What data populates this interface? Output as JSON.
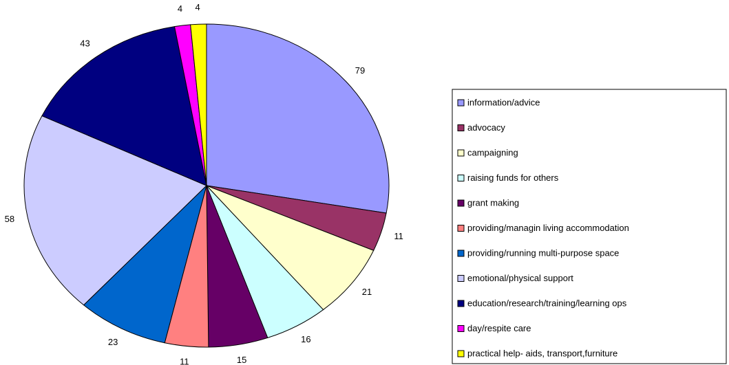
{
  "chart_data": {
    "type": "pie",
    "categories": [
      "information/advice",
      "advocacy",
      "campaigning",
      "raising funds for others",
      "grant making",
      "providing/managin living accommodation",
      "providing/running multi-purpose space",
      "emotional/physical support",
      "education/research/training/learning ops",
      "day/respite care",
      "practical help- aids, transport,furniture"
    ],
    "values": [
      79,
      11,
      21,
      16,
      15,
      11,
      23,
      58,
      43,
      4,
      4
    ],
    "colors": [
      "#9999ff",
      "#993366",
      "#ffffcc",
      "#ccffff",
      "#660066",
      "#ff8080",
      "#0066cc",
      "#ccccff",
      "#000080",
      "#ff00ff",
      "#ffff00"
    ],
    "legend": "right"
  }
}
